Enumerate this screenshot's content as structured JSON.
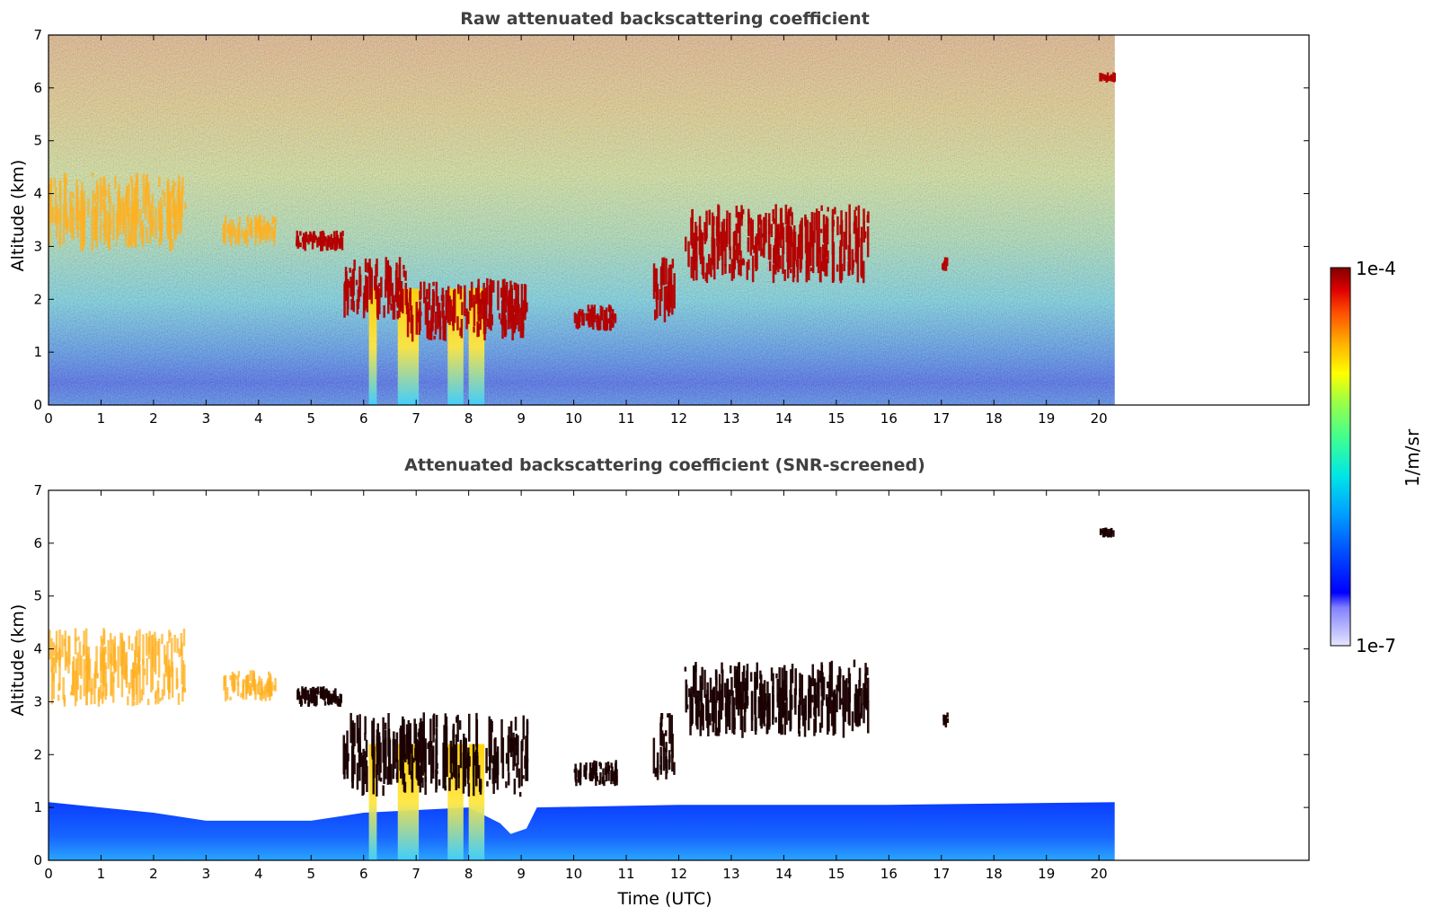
{
  "chart_data": [
    {
      "type": "heatmap",
      "title": "Raw attenuated backscattering coefficient",
      "xlabel": "",
      "ylabel": "Altitude (km)",
      "xlim": [
        0,
        24
      ],
      "ylim": [
        0,
        7
      ],
      "x_ticks": [
        "0",
        "1",
        "2",
        "3",
        "4",
        "5",
        "6",
        "7",
        "8",
        "9",
        "10",
        "11",
        "12",
        "13",
        "14",
        "15",
        "16",
        "17",
        "18",
        "19",
        "20"
      ],
      "y_ticks": [
        "0",
        "1",
        "2",
        "3",
        "4",
        "5",
        "6",
        "7"
      ],
      "data_end_time": 20.3,
      "noise_break_time": 9.1,
      "cloud_layers": [
        {
          "t": [
            0,
            2.6
          ],
          "alt": [
            2.9,
            4.4
          ],
          "level": "high"
        },
        {
          "t": [
            3.3,
            4.3
          ],
          "alt": [
            3.0,
            3.6
          ],
          "level": "high"
        },
        {
          "t": [
            4.7,
            5.6
          ],
          "alt": [
            2.9,
            3.3
          ],
          "level": "max"
        },
        {
          "t": [
            5.6,
            6.8
          ],
          "alt": [
            1.6,
            2.8
          ],
          "level": "max"
        },
        {
          "t": [
            6.8,
            9.1
          ],
          "alt": [
            1.2,
            2.4
          ],
          "level": "max"
        },
        {
          "t": [
            10.0,
            10.8
          ],
          "alt": [
            1.4,
            1.9
          ],
          "level": "max"
        },
        {
          "t": [
            11.5,
            11.9
          ],
          "alt": [
            1.5,
            2.8
          ],
          "level": "max"
        },
        {
          "t": [
            12.1,
            15.6
          ],
          "alt": [
            2.3,
            3.8
          ],
          "level": "max"
        },
        {
          "t": [
            17.0,
            17.1
          ],
          "alt": [
            2.5,
            2.8
          ],
          "level": "max"
        },
        {
          "t": [
            20.0,
            20.3
          ],
          "alt": [
            6.1,
            6.3
          ],
          "level": "max"
        }
      ]
    },
    {
      "type": "heatmap",
      "title": "Attenuated backscattering coefficient (SNR-screened)",
      "xlabel": "Time (UTC)",
      "ylabel": "Altitude (km)",
      "xlim": [
        0,
        24
      ],
      "ylim": [
        0,
        7
      ],
      "x_ticks": [
        "0",
        "1",
        "2",
        "3",
        "4",
        "5",
        "6",
        "7",
        "8",
        "9",
        "10",
        "11",
        "12",
        "13",
        "14",
        "15",
        "16",
        "17",
        "18",
        "19",
        "20"
      ],
      "y_ticks": [
        "0",
        "1",
        "2",
        "3",
        "4",
        "5",
        "6",
        "7"
      ],
      "data_end_time": 20.3,
      "screened_boundary_layer_top_km": [
        1.1,
        0.5,
        1.1
      ],
      "cloud_layers": [
        {
          "t": [
            0,
            2.6
          ],
          "alt": [
            2.9,
            4.4
          ],
          "level": "high"
        },
        {
          "t": [
            3.3,
            4.3
          ],
          "alt": [
            3.0,
            3.6
          ],
          "level": "high"
        },
        {
          "t": [
            4.7,
            5.6
          ],
          "alt": [
            2.9,
            3.3
          ],
          "level": "saturated"
        },
        {
          "t": [
            5.6,
            9.1
          ],
          "alt": [
            1.2,
            2.8
          ],
          "level": "saturated"
        },
        {
          "t": [
            10.0,
            10.8
          ],
          "alt": [
            1.4,
            1.9
          ],
          "level": "saturated"
        },
        {
          "t": [
            11.5,
            11.9
          ],
          "alt": [
            1.5,
            2.8
          ],
          "level": "saturated"
        },
        {
          "t": [
            12.1,
            15.6
          ],
          "alt": [
            2.3,
            3.8
          ],
          "level": "saturated"
        },
        {
          "t": [
            17.0,
            17.1
          ],
          "alt": [
            2.5,
            2.8
          ],
          "level": "saturated"
        },
        {
          "t": [
            20.0,
            20.3
          ],
          "alt": [
            6.1,
            6.3
          ],
          "level": "saturated"
        }
      ]
    }
  ],
  "colorbar": {
    "label": "1/m/sr",
    "max_label": "1e-4",
    "min_label": "1e-7",
    "colormap": [
      "#e6e6ff",
      "#b4b4ff",
      "#8282ff",
      "#0000ff",
      "#0050ff",
      "#00a0ff",
      "#00e6e6",
      "#40ff90",
      "#a0ff40",
      "#ffff00",
      "#ffb000",
      "#ff5000",
      "#e00000",
      "#800000"
    ]
  }
}
